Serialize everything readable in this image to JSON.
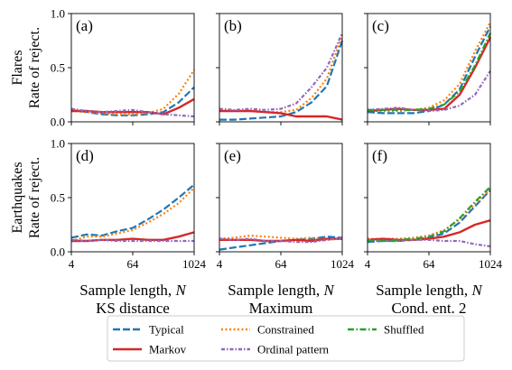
{
  "figure": {
    "row_labels": [
      [
        "Flares",
        "Rate of reject."
      ],
      [
        "Earthquakes",
        "Rate of reject."
      ]
    ],
    "col_labels": [
      [
        "Sample length, ",
        "N",
        "KS distance"
      ],
      [
        "Sample length, ",
        "N",
        "Maximum"
      ],
      [
        "Sample length, ",
        "N",
        "Cond. ent. 2"
      ]
    ],
    "legend": [
      {
        "name": "Typical",
        "color": "#1f77b4",
        "dash": "dashed"
      },
      {
        "name": "Markov",
        "color": "#d62728",
        "dash": "solid"
      },
      {
        "name": "Constrained",
        "color": "#ff7f0e",
        "dash": "dotted"
      },
      {
        "name": "Ordinal pattern",
        "color": "#9467bd",
        "dash": "dashdot-fine"
      },
      {
        "name": "Shuffled",
        "color": "#2ca02c",
        "dash": "dashdot"
      }
    ],
    "legend_placement": "bottom-center"
  },
  "chart_data": [
    {
      "type": "line",
      "panel_label": "(a)",
      "xscale": "log2",
      "x": [
        4,
        8,
        16,
        32,
        64,
        128,
        256,
        512,
        1024
      ],
      "xticks": [
        "4",
        "64",
        "1024"
      ],
      "ylim": [
        0,
        1
      ],
      "yticks": [
        "0.0",
        "0.5",
        "1.0"
      ],
      "series": [
        {
          "name": "Typical",
          "values": [
            0.11,
            0.09,
            0.07,
            0.06,
            0.06,
            0.07,
            0.09,
            0.18,
            0.32
          ]
        },
        {
          "name": "Constrained",
          "values": [
            0.1,
            0.09,
            0.08,
            0.07,
            0.07,
            0.08,
            0.12,
            0.26,
            0.48
          ]
        },
        {
          "name": "Markov",
          "values": [
            0.1,
            0.1,
            0.09,
            0.09,
            0.09,
            0.09,
            0.07,
            0.13,
            0.21
          ]
        },
        {
          "name": "Ordinal pattern",
          "values": [
            0.12,
            0.1,
            0.09,
            0.1,
            0.11,
            0.09,
            0.07,
            0.06,
            0.05
          ]
        }
      ]
    },
    {
      "type": "line",
      "panel_label": "(b)",
      "xscale": "log2",
      "x": [
        4,
        8,
        16,
        32,
        64,
        128,
        256,
        512,
        1024
      ],
      "xticks": [
        "4",
        "64",
        "1024"
      ],
      "ylim": [
        0,
        1
      ],
      "yticks": [
        "0.0",
        "0.5",
        "1.0"
      ],
      "series": [
        {
          "name": "Typical",
          "values": [
            0.02,
            0.02,
            0.03,
            0.04,
            0.05,
            0.09,
            0.18,
            0.33,
            0.75
          ]
        },
        {
          "name": "Constrained",
          "values": [
            0.1,
            0.1,
            0.1,
            0.09,
            0.09,
            0.11,
            0.22,
            0.4,
            0.8
          ]
        },
        {
          "name": "Markov",
          "values": [
            0.1,
            0.1,
            0.1,
            0.09,
            0.08,
            0.05,
            0.05,
            0.05,
            0.02
          ]
        },
        {
          "name": "Ordinal pattern",
          "values": [
            0.12,
            0.11,
            0.12,
            0.11,
            0.12,
            0.17,
            0.32,
            0.5,
            0.82
          ]
        }
      ]
    },
    {
      "type": "line",
      "panel_label": "(c)",
      "xscale": "log2",
      "x": [
        4,
        8,
        16,
        32,
        64,
        128,
        256,
        512,
        1024
      ],
      "xticks": [
        "4",
        "64",
        "1024"
      ],
      "ylim": [
        0,
        1
      ],
      "yticks": [
        "0.0",
        "0.5",
        "1.0"
      ],
      "series": [
        {
          "name": "Typical",
          "values": [
            0.09,
            0.08,
            0.08,
            0.08,
            0.1,
            0.16,
            0.3,
            0.6,
            0.88
          ]
        },
        {
          "name": "Constrained",
          "values": [
            0.1,
            0.1,
            0.1,
            0.11,
            0.13,
            0.2,
            0.35,
            0.65,
            0.92
          ]
        },
        {
          "name": "Markov",
          "values": [
            0.1,
            0.11,
            0.12,
            0.11,
            0.11,
            0.12,
            0.25,
            0.5,
            0.78
          ]
        },
        {
          "name": "Ordinal pattern",
          "values": [
            0.11,
            0.12,
            0.13,
            0.11,
            0.1,
            0.11,
            0.15,
            0.25,
            0.47
          ]
        },
        {
          "name": "Shuffled",
          "values": [
            0.11,
            0.11,
            0.11,
            0.11,
            0.12,
            0.16,
            0.28,
            0.52,
            0.82
          ]
        }
      ]
    },
    {
      "type": "line",
      "panel_label": "(d)",
      "xscale": "log2",
      "x": [
        4,
        8,
        16,
        32,
        64,
        128,
        256,
        512,
        1024
      ],
      "xticks": [
        "4",
        "64",
        "1024"
      ],
      "ylim": [
        0,
        1
      ],
      "yticks": [
        "0.0",
        "0.5",
        "1.0"
      ],
      "series": [
        {
          "name": "Typical",
          "values": [
            0.13,
            0.16,
            0.15,
            0.19,
            0.22,
            0.3,
            0.39,
            0.5,
            0.62
          ]
        },
        {
          "name": "Constrained",
          "values": [
            0.1,
            0.14,
            0.14,
            0.17,
            0.2,
            0.27,
            0.35,
            0.45,
            0.59
          ]
        },
        {
          "name": "Markov",
          "values": [
            0.1,
            0.1,
            0.11,
            0.11,
            0.12,
            0.11,
            0.11,
            0.14,
            0.18
          ]
        },
        {
          "name": "Ordinal pattern",
          "values": [
            0.11,
            0.1,
            0.11,
            0.1,
            0.1,
            0.1,
            0.1,
            0.1,
            0.1
          ]
        }
      ]
    },
    {
      "type": "line",
      "panel_label": "(e)",
      "xscale": "log2",
      "x": [
        4,
        8,
        16,
        32,
        64,
        128,
        256,
        512,
        1024
      ],
      "xticks": [
        "4",
        "64",
        "1024"
      ],
      "ylim": [
        0,
        1
      ],
      "yticks": [
        "0.0",
        "0.5",
        "1.0"
      ],
      "series": [
        {
          "name": "Typical",
          "values": [
            0.02,
            0.04,
            0.06,
            0.08,
            0.1,
            0.11,
            0.12,
            0.14,
            0.13
          ]
        },
        {
          "name": "Constrained",
          "values": [
            0.12,
            0.13,
            0.15,
            0.14,
            0.13,
            0.12,
            0.13,
            0.11,
            0.12
          ]
        },
        {
          "name": "Markov",
          "values": [
            0.11,
            0.11,
            0.11,
            0.1,
            0.1,
            0.11,
            0.1,
            0.12,
            0.12
          ]
        },
        {
          "name": "Ordinal pattern",
          "values": [
            0.12,
            0.11,
            0.12,
            0.1,
            0.1,
            0.09,
            0.09,
            0.11,
            0.13
          ]
        }
      ]
    },
    {
      "type": "line",
      "panel_label": "(f)",
      "xscale": "log2",
      "x": [
        4,
        8,
        16,
        32,
        64,
        128,
        256,
        512,
        1024
      ],
      "xticks": [
        "4",
        "64",
        "1024"
      ],
      "ylim": [
        0,
        1
      ],
      "yticks": [
        "0.0",
        "0.5",
        "1.0"
      ],
      "series": [
        {
          "name": "Typical",
          "values": [
            0.09,
            0.1,
            0.1,
            0.11,
            0.13,
            0.17,
            0.27,
            0.42,
            0.57
          ]
        },
        {
          "name": "Constrained",
          "values": [
            0.12,
            0.12,
            0.12,
            0.13,
            0.15,
            0.2,
            0.3,
            0.44,
            0.58
          ]
        },
        {
          "name": "Markov",
          "values": [
            0.11,
            0.12,
            0.11,
            0.11,
            0.12,
            0.14,
            0.18,
            0.25,
            0.29
          ]
        },
        {
          "name": "Ordinal pattern",
          "values": [
            0.11,
            0.1,
            0.1,
            0.11,
            0.11,
            0.1,
            0.1,
            0.07,
            0.05
          ]
        },
        {
          "name": "Shuffled",
          "values": [
            0.1,
            0.1,
            0.11,
            0.12,
            0.14,
            0.19,
            0.31,
            0.46,
            0.6
          ]
        }
      ]
    }
  ]
}
